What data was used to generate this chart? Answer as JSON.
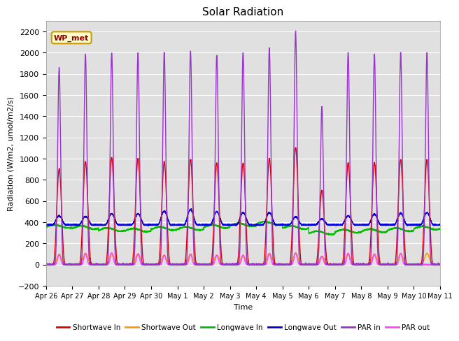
{
  "title": "Solar Radiation",
  "xlabel": "Time",
  "ylabel": "Radiation (W/m2, umol/m2/s)",
  "ylim": [
    -200,
    2300
  ],
  "yticks": [
    -200,
    0,
    200,
    400,
    600,
    800,
    1000,
    1200,
    1400,
    1600,
    1800,
    2000,
    2200
  ],
  "background_color": "#e0e0e0",
  "annotation_text": "WP_met",
  "annotation_bg": "#ffffcc",
  "annotation_border": "#cc9900",
  "legend_entries": [
    {
      "label": "Shortwave In",
      "color": "#dd0000"
    },
    {
      "label": "Shortwave Out",
      "color": "#ff9900"
    },
    {
      "label": "Longwave In",
      "color": "#00bb00"
    },
    {
      "label": "Longwave Out",
      "color": "#0000dd"
    },
    {
      "label": "PAR in",
      "color": "#9933cc"
    },
    {
      "label": "PAR out",
      "color": "#ff44ff"
    }
  ],
  "num_days": 15,
  "shortwave_in_peaks": [
    900,
    970,
    1010,
    1000,
    970,
    990,
    960,
    960,
    1000,
    1100,
    700,
    960,
    960,
    990,
    990
  ],
  "shortwave_out_peaks": [
    95,
    105,
    108,
    100,
    88,
    98,
    88,
    88,
    105,
    108,
    78,
    105,
    98,
    105,
    105
  ],
  "par_in_peaks": [
    1860,
    1980,
    2000,
    2000,
    2000,
    2010,
    1980,
    2000,
    2040,
    2200,
    1490,
    2000,
    1980,
    2000,
    2000
  ],
  "par_out_peaks": [
    95,
    105,
    108,
    100,
    88,
    98,
    88,
    88,
    105,
    108,
    78,
    105,
    98,
    105,
    0
  ],
  "lw_in_values": [
    360,
    350,
    330,
    325,
    340,
    340,
    360,
    375,
    390,
    350,
    300,
    315,
    320,
    330,
    345
  ],
  "lw_out_day_peaks": [
    460,
    455,
    480,
    480,
    505,
    520,
    500,
    490,
    490,
    450,
    430,
    460,
    475,
    485,
    490
  ],
  "lw_out_night": 375,
  "tick_labels": [
    "Apr 26",
    "Apr 27",
    "Apr 28",
    "Apr 29",
    "Apr 30",
    "May 1",
    "May 2",
    "May 3",
    "May 4",
    "May 5",
    "May 6",
    "May 7",
    "May 8",
    "May 9",
    "May 10",
    "May 11"
  ],
  "figsize": [
    6.4,
    4.8
  ],
  "dpi": 100
}
